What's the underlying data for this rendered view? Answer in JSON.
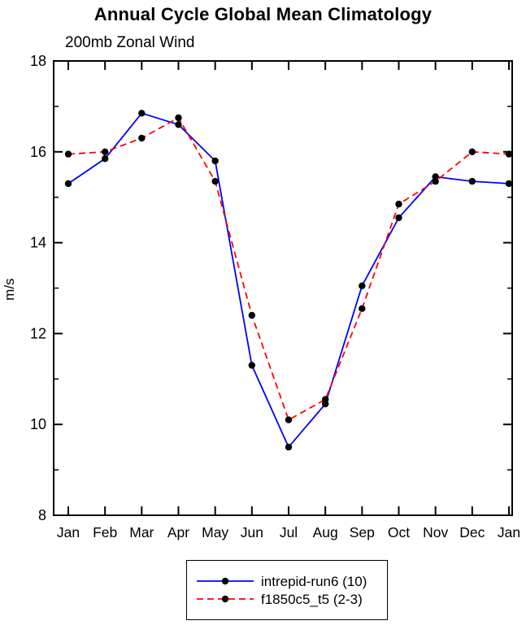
{
  "chart_data": {
    "type": "line",
    "title": "Annual Cycle Global Mean Climatology",
    "subtitle": "200mb Zonal Wind",
    "xlabel": "",
    "ylabel": "m/s",
    "ylim": [
      8,
      18
    ],
    "yticks_major": [
      8,
      10,
      12,
      14,
      16,
      18
    ],
    "yticks_minor": [
      9,
      11,
      13,
      15,
      17
    ],
    "categories": [
      "Jan",
      "Feb",
      "Mar",
      "Apr",
      "May",
      "Jun",
      "Jul",
      "Aug",
      "Sep",
      "Oct",
      "Nov",
      "Dec",
      "Jan"
    ],
    "grid": false,
    "legend_position": "bottom",
    "frame_color": "#000000",
    "marker": "circle",
    "marker_color": "#000000",
    "series": [
      {
        "name": "intrepid-run6 (10)",
        "color": "#0000ff",
        "style": "solid",
        "values": [
          15.3,
          15.85,
          16.85,
          16.6,
          15.8,
          11.3,
          9.5,
          10.45,
          13.05,
          14.55,
          15.45,
          15.35,
          15.3
        ]
      },
      {
        "name": "f1850c5_t5 (2-3)",
        "color": "#ff0000",
        "style": "dashed",
        "values": [
          15.95,
          16.0,
          16.3,
          16.75,
          15.35,
          12.4,
          10.1,
          10.55,
          12.55,
          14.85,
          15.35,
          16.0,
          15.95
        ]
      }
    ]
  }
}
